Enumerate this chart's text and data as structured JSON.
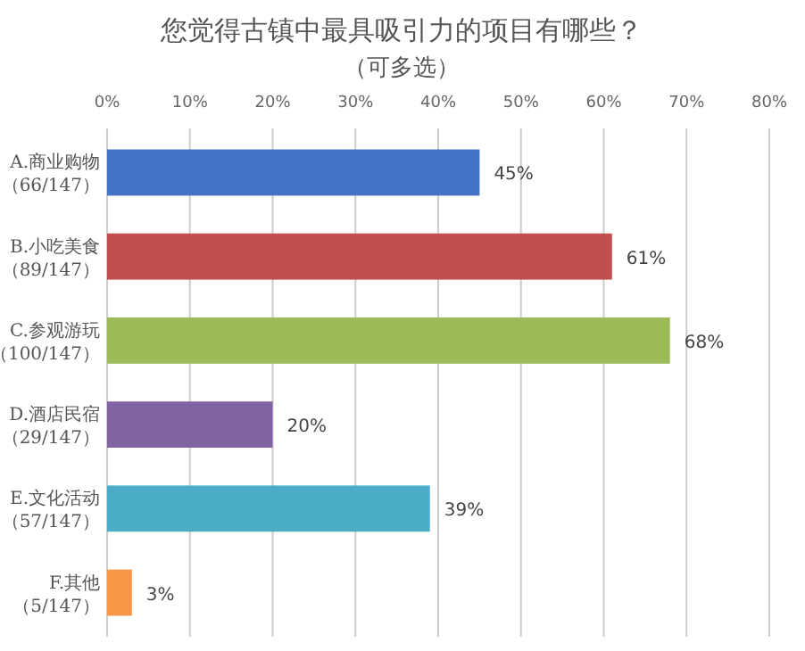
{
  "chart_data": {
    "type": "bar",
    "orientation": "horizontal",
    "title": "您觉得古镇中最具吸引力的项目有哪些？",
    "subtitle": "（可多选）",
    "categories": [
      "A.商业购物（66/147）",
      "B.小吃美食（89/147）",
      "C.参观游玩（100/147）",
      "D.酒店民宿（29/147）",
      "E.文化活动（57/147）",
      "F.其他（5/147）"
    ],
    "values": [
      45,
      61,
      68,
      20,
      39,
      3
    ],
    "value_labels": [
      "45%",
      "61%",
      "68%",
      "20%",
      "39%",
      "3%"
    ],
    "colors": [
      "#4472c4",
      "#c0504d",
      "#9bbb59",
      "#8064a2",
      "#4bacc6",
      "#f79646"
    ],
    "xlim": [
      0,
      80
    ],
    "xticks": [
      {
        "value": 0,
        "label": "0%"
      },
      {
        "value": 10,
        "label": "10%"
      },
      {
        "value": 20,
        "label": "20%"
      },
      {
        "value": 30,
        "label": "30%"
      },
      {
        "value": 40,
        "label": "40%"
      },
      {
        "value": 50,
        "label": "50%"
      },
      {
        "value": 60,
        "label": "60%"
      },
      {
        "value": 70,
        "label": "70%"
      },
      {
        "value": 80,
        "label": "80%"
      }
    ],
    "grid": "x"
  }
}
